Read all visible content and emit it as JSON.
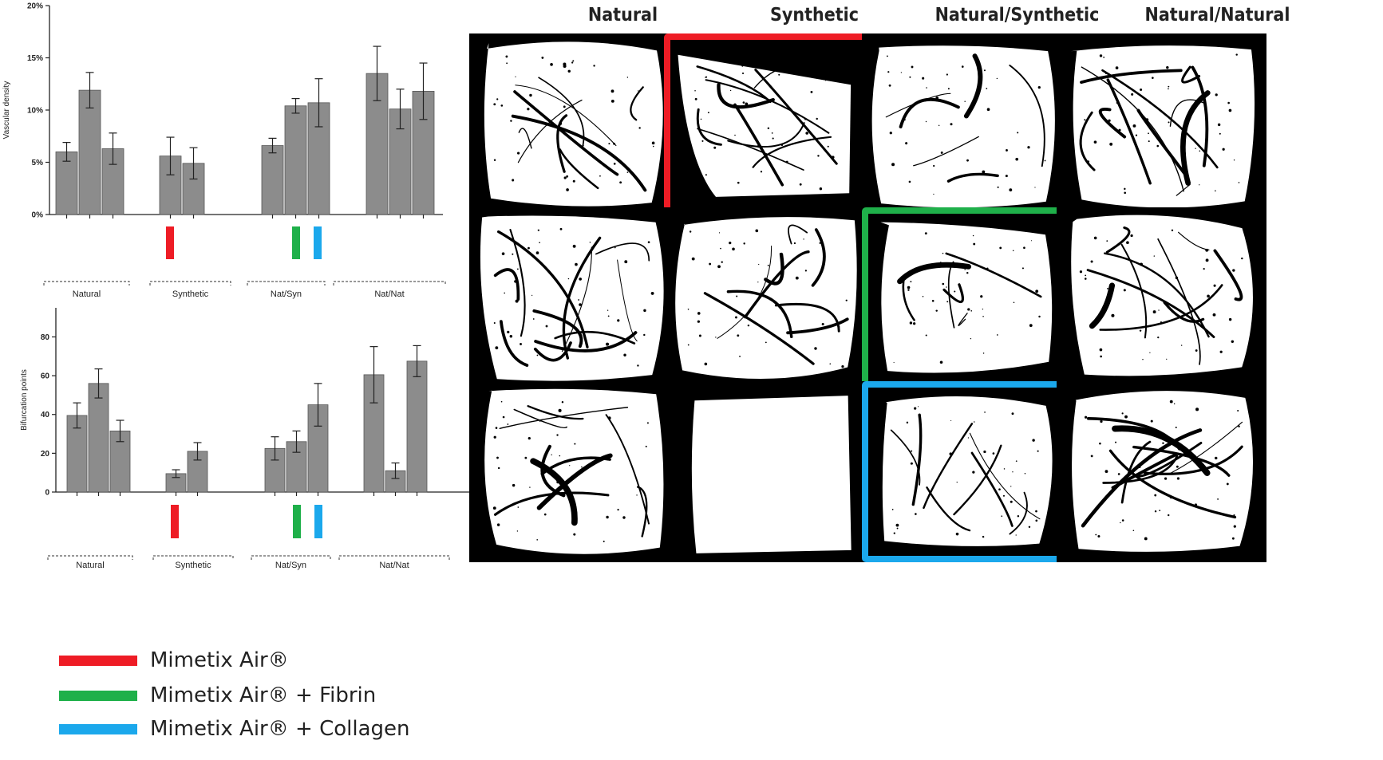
{
  "chart_data": [
    {
      "type": "bar",
      "ylabel": "Vascular density",
      "ylim": [
        0,
        20
      ],
      "ytick_labels": [
        "0%",
        "5%",
        "10%",
        "15%",
        "20%"
      ],
      "groups": [
        {
          "label": "Natural",
          "values": [
            6.0,
            11.9,
            6.3
          ],
          "errors": [
            0.9,
            1.7,
            1.5
          ],
          "markers": []
        },
        {
          "label": "Synthetic",
          "values": [
            5.6,
            4.9
          ],
          "errors": [
            1.8,
            1.5
          ],
          "markers": [
            "red"
          ]
        },
        {
          "label": "Nat/Syn",
          "values": [
            6.6,
            10.4,
            10.7
          ],
          "errors": [
            0.7,
            0.7,
            2.3
          ],
          "markers": [
            "green",
            "blue"
          ]
        },
        {
          "label": "Nat/Nat",
          "values": [
            13.5,
            10.1,
            11.8
          ],
          "errors": [
            2.6,
            1.9,
            2.7
          ],
          "markers": []
        }
      ]
    },
    {
      "type": "bar",
      "ylabel": "Bifurcation points",
      "ylim": [
        0,
        95
      ],
      "ytick_labels": [
        "0",
        "20",
        "40",
        "60",
        "80"
      ],
      "groups": [
        {
          "label": "Natural",
          "values": [
            39.5,
            56.0,
            31.5
          ],
          "errors": [
            6.5,
            7.5,
            5.5
          ],
          "markers": []
        },
        {
          "label": "Synthetic",
          "values": [
            9.5,
            21.0
          ],
          "errors": [
            2.0,
            4.5
          ],
          "markers": [
            "red"
          ]
        },
        {
          "label": "Nat/Syn",
          "values": [
            22.5,
            26.0,
            45.0
          ],
          "errors": [
            6.0,
            5.5,
            11.0
          ],
          "markers": [
            "green",
            "blue"
          ]
        },
        {
          "label": "Nat/Nat",
          "values": [
            60.5,
            11.0,
            67.5
          ],
          "errors": [
            14.5,
            4.0,
            8.0
          ],
          "markers": []
        }
      ]
    }
  ],
  "colors": {
    "red": "#ee1c25",
    "green": "#1fb04a",
    "blue": "#1ba8ec",
    "bar": "#8c8c8c"
  },
  "legend": [
    {
      "label": "Mimetix Air®",
      "color": "red"
    },
    {
      "label": "Mimetix Air® + Fibrin",
      "color": "green"
    },
    {
      "label": "Mimetix Air® + Collagen",
      "color": "blue"
    }
  ],
  "image_grid": {
    "columns": [
      "Natural",
      "Synthetic",
      "Natural/Synthetic",
      "Natural/Natural"
    ],
    "highlights": [
      {
        "row": 0,
        "col": 1,
        "color": "red"
      },
      {
        "row": 1,
        "col": 2,
        "color": "green"
      },
      {
        "row": 2,
        "col": 2,
        "color": "blue"
      }
    ]
  }
}
